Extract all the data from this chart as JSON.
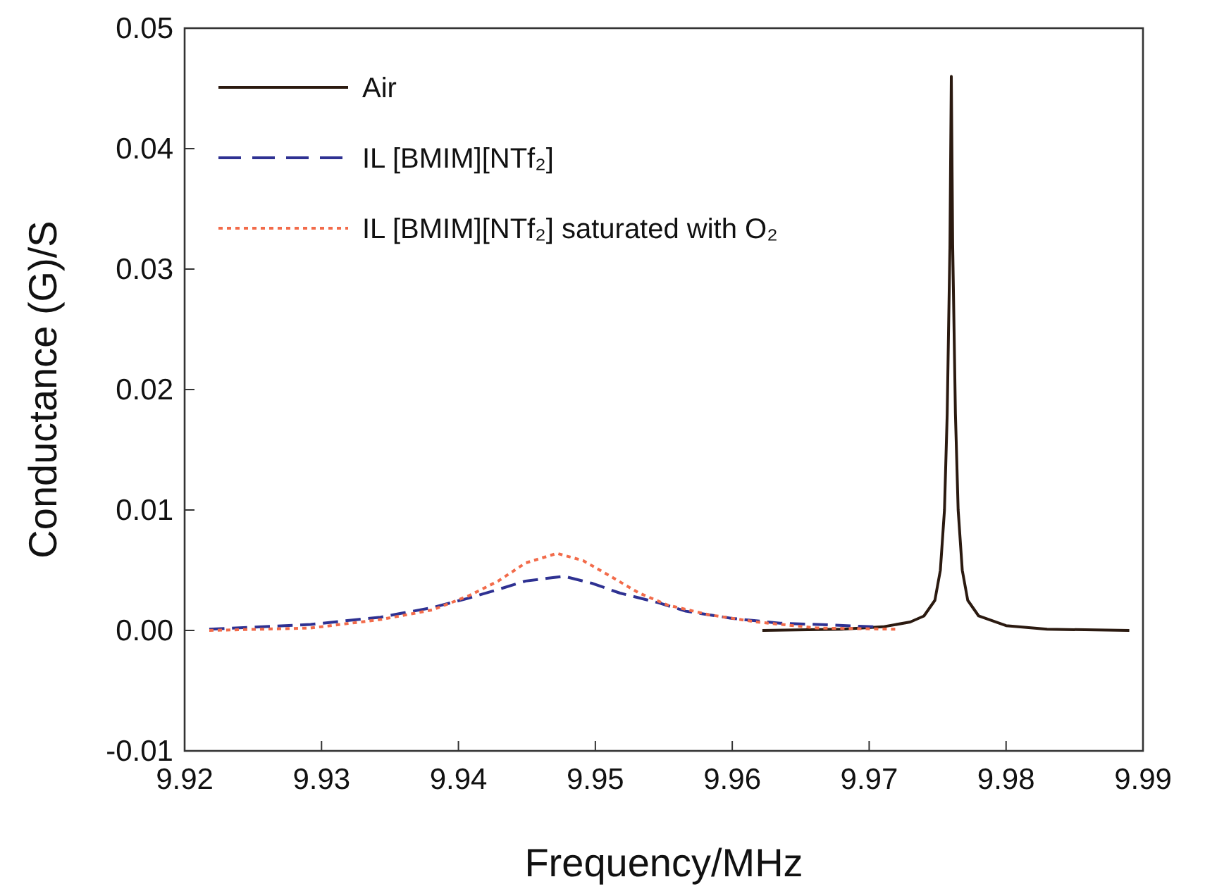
{
  "chart_data": {
    "type": "line",
    "xlabel": "Frequency/MHz",
    "ylabel": "Conductance (G)/S",
    "xlim": [
      9.92,
      9.99
    ],
    "xticks": [
      9.92,
      9.93,
      9.94,
      9.95,
      9.96,
      9.97,
      9.98,
      9.99
    ],
    "ylim": [
      -0.01,
      0.05
    ],
    "yticks": [
      {
        "value": -0.01,
        "label": "-0.01"
      },
      {
        "value": 0,
        "label": "0.00"
      },
      {
        "value": 0.01,
        "label": "0.01"
      },
      {
        "value": 0.02,
        "label": "0.02"
      },
      {
        "value": 0.03,
        "label": "0.03"
      },
      {
        "value": 0.04,
        "label": "0.04"
      },
      {
        "value": 0.05,
        "label": "0.05"
      }
    ],
    "legend": "top left",
    "series": [
      {
        "name": "Air",
        "color": "#2b1a10",
        "line_style": "solid",
        "x": [
          9.9622,
          9.968,
          9.971,
          9.973,
          9.974,
          9.9748,
          9.9752,
          9.9755,
          9.9757,
          9.9759,
          9.976,
          9.9761,
          9.9763,
          9.9765,
          9.9768,
          9.9772,
          9.978,
          9.98,
          9.983,
          9.989
        ],
        "values": [
          0,
          0.0001,
          0.0003,
          0.0007,
          0.0012,
          0.0025,
          0.005,
          0.01,
          0.018,
          0.032,
          0.046,
          0.032,
          0.018,
          0.01,
          0.005,
          0.0025,
          0.0012,
          0.0004,
          0.0001,
          0
        ]
      },
      {
        "name": "IL [BMIM][NTf₂]",
        "color": "#2e3192",
        "line_style": "dashed",
        "x": [
          9.9218,
          9.9292,
          9.9343,
          9.9381,
          9.9408,
          9.9429,
          9.9449,
          9.9477,
          9.9498,
          9.9518,
          9.9546,
          9.9566,
          9.96,
          9.9635,
          9.9662,
          9.9703
        ],
        "values": [
          0.0001,
          0.0005,
          0.0011,
          0.0019,
          0.0027,
          0.0034,
          0.0041,
          0.0045,
          0.0039,
          0.0031,
          0.0023,
          0.0016,
          0.001,
          0.0006,
          0.0005,
          0.0003
        ]
      },
      {
        "name": "IL [BMIM][NTf₂] saturated with O₂",
        "color": "#f26b4a",
        "line_style": "dotted",
        "x": [
          9.9218,
          9.9292,
          9.9343,
          9.9381,
          9.9408,
          9.9429,
          9.9449,
          9.9472,
          9.9491,
          9.9511,
          9.9532,
          9.9553,
          9.9583,
          9.9618,
          9.9662,
          9.972
        ],
        "values": [
          0,
          0.0002,
          0.0009,
          0.0017,
          0.0029,
          0.0041,
          0.0056,
          0.0064,
          0.0058,
          0.0045,
          0.0031,
          0.0021,
          0.0013,
          0.0007,
          0.0002,
          0.0001
        ]
      }
    ]
  }
}
